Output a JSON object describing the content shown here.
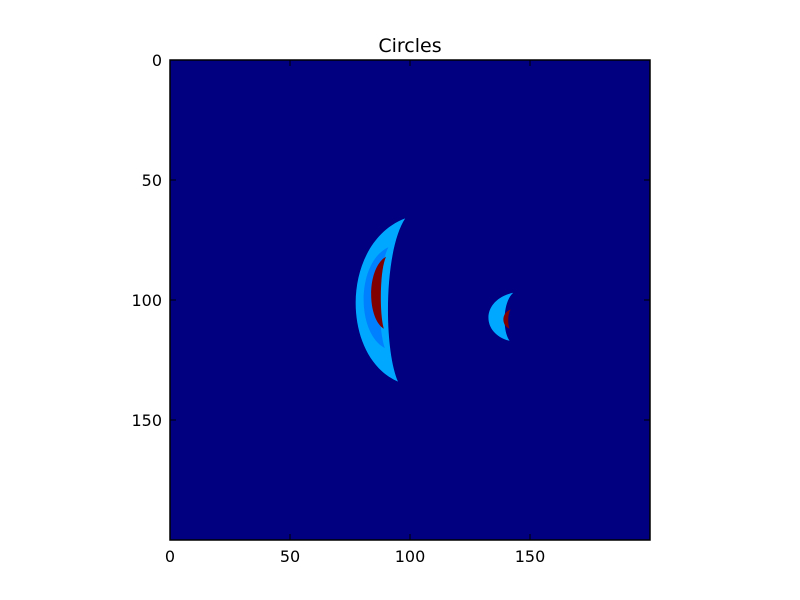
{
  "chart_data": {
    "type": "heatmap",
    "title": "Circles",
    "xlabel": "",
    "ylabel": "",
    "xlim": [
      0,
      200
    ],
    "ylim": [
      200,
      0
    ],
    "x_ticks": [
      0,
      50,
      100,
      150
    ],
    "y_ticks": [
      0,
      50,
      100,
      150
    ],
    "x_tick_labels": [
      "0",
      "50",
      "100",
      "150"
    ],
    "y_tick_labels": [
      "0",
      "50",
      "100",
      "150"
    ],
    "grid": false,
    "colormap": "jet",
    "colors": {
      "background": "#000080",
      "outer_ring": "#00a8ff",
      "inner_ring": "#0080ff",
      "core": "#800000"
    },
    "regions": [
      {
        "shape": "crescent",
        "level": "outer",
        "x_range": [
          78,
          98
        ],
        "y_range": [
          66,
          134
        ]
      },
      {
        "shape": "crescent",
        "level": "inner",
        "x_range": [
          81,
          91
        ],
        "y_range": [
          78,
          120
        ]
      },
      {
        "shape": "crescent",
        "level": "core",
        "x_range": [
          84,
          90
        ],
        "y_range": [
          82,
          112
        ]
      },
      {
        "shape": "crescent",
        "level": "outer",
        "x_range": [
          133,
          143
        ],
        "y_range": [
          97,
          117
        ]
      },
      {
        "shape": "crescent",
        "level": "core",
        "x_range": [
          139,
          142
        ],
        "y_range": [
          104,
          112
        ]
      }
    ]
  }
}
